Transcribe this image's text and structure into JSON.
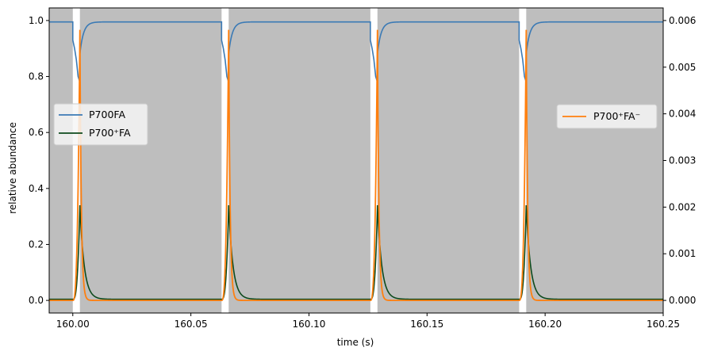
{
  "chart_data": {
    "type": "line",
    "xlabel": "time (s)",
    "ylabel": "relative abundance",
    "xlim": [
      159.99,
      160.25
    ],
    "ylim_left": [
      -0.045,
      1.045
    ],
    "ylim_right": [
      -0.00027,
      0.00627
    ],
    "x_ticks": [
      160.0,
      160.05,
      160.1,
      160.15,
      160.2,
      160.25
    ],
    "x_tick_labels": [
      "160.00",
      "160.05",
      "160.10",
      "160.15",
      "160.20",
      "160.25"
    ],
    "y_left_ticks": [
      0.0,
      0.2,
      0.4,
      0.6,
      0.8,
      1.0
    ],
    "y_left_tick_labels": [
      "0.0",
      "0.2",
      "0.4",
      "0.6",
      "0.8",
      "1.0"
    ],
    "y_right_ticks": [
      0.0,
      0.001,
      0.002,
      0.003,
      0.004,
      0.005,
      0.006
    ],
    "y_right_tick_labels": [
      "0.000",
      "0.001",
      "0.002",
      "0.003",
      "0.004",
      "0.005",
      "0.006"
    ],
    "shading": {
      "color": "#bebebe",
      "dark_intervals": [
        [
          159.99,
          160.0
        ],
        [
          160.003,
          160.063
        ],
        [
          160.066,
          160.126
        ],
        [
          160.129,
          160.189
        ],
        [
          160.192,
          160.25
        ]
      ]
    },
    "pulses": [
      {
        "start": 160.0,
        "end": 160.003
      },
      {
        "start": 160.063,
        "end": 160.066
      },
      {
        "start": 160.126,
        "end": 160.129
      },
      {
        "start": 160.189,
        "end": 160.192
      }
    ],
    "series": [
      {
        "name": "P700FA",
        "axis": "left",
        "color": "#3b7ab5",
        "baseline": 0.995,
        "pulse_drop_values": [
          0.93,
          0.9,
          0.86,
          0.8,
          0.78
        ],
        "recovery_start": 0.88,
        "recovery_tau": 0.0015
      },
      {
        "name": "P700⁺FA",
        "axis": "left",
        "color": "#0d4a1c",
        "baseline": 0.004,
        "pulse_peak": 0.34,
        "decay_tau": 0.0018
      },
      {
        "name": "P700⁺FA⁻",
        "axis": "right",
        "color": "#ff7f0e",
        "baseline": 0.0,
        "pulse_peak": 0.0058,
        "decay_tau": 0.0006
      }
    ],
    "legends": [
      {
        "placement": "center-left",
        "entries": [
          "P700FA",
          "P700⁺FA"
        ]
      },
      {
        "placement": "center-right",
        "entries": [
          "P700⁺FA⁻"
        ]
      }
    ]
  },
  "labels": {
    "legend_left_1": "P700FA",
    "legend_left_2": "P700⁺FA",
    "legend_right_1": "P700⁺FA⁻",
    "xlabel": "time (s)",
    "ylabel": "relative abundance"
  }
}
